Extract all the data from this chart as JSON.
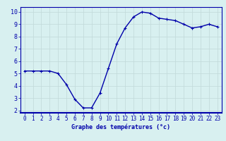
{
  "hours": [
    0,
    1,
    2,
    3,
    4,
    5,
    6,
    7,
    8,
    9,
    10,
    11,
    12,
    13,
    14,
    15,
    16,
    17,
    18,
    19,
    20,
    21,
    22,
    23
  ],
  "temps": [
    5.2,
    5.2,
    5.2,
    5.2,
    5.0,
    4.1,
    2.9,
    2.2,
    2.2,
    3.4,
    5.4,
    7.4,
    8.7,
    9.6,
    10.0,
    9.9,
    9.5,
    9.4,
    9.3,
    9.0,
    8.7,
    8.8,
    9.0,
    8.8
  ],
  "line_color": "#0000aa",
  "marker": "+",
  "markersize": 3.5,
  "linewidth": 1.0,
  "xlabel": "Graphe des températures (°c)",
  "ylim": [
    1.8,
    10.4
  ],
  "yticks": [
    2,
    3,
    4,
    5,
    6,
    7,
    8,
    9,
    10
  ],
  "xlim": [
    -0.5,
    23.5
  ],
  "bg_color": "#d8f0f0",
  "grid_color": "#c0d8d8",
  "axis_label_color": "#0000aa",
  "tick_color": "#0000aa",
  "border_color": "#0000aa",
  "xlabel_fontsize": 6.0,
  "tick_fontsize": 5.5
}
